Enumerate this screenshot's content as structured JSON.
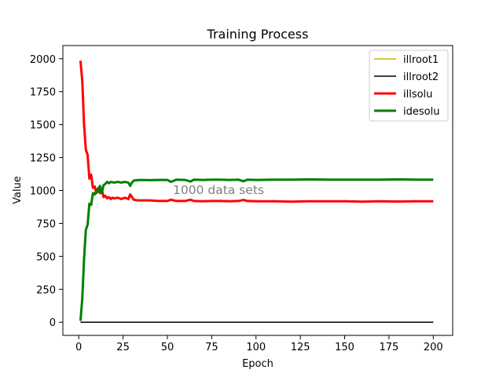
{
  "chart_data": {
    "type": "line",
    "title": "Training Process",
    "xlabel": "Epoch",
    "ylabel": "Value",
    "xlim": [
      -8.95,
      210.95
    ],
    "ylim": [
      -100,
      2100
    ],
    "xticks": [
      0,
      25,
      50,
      75,
      100,
      125,
      150,
      175,
      200
    ],
    "yticks": [
      0,
      250,
      500,
      750,
      1000,
      1250,
      1500,
      1750,
      2000
    ],
    "grid": false,
    "legend_position": "top-right",
    "annotation": {
      "text": "1000 data sets",
      "x": 78,
      "y": 990
    },
    "series": [
      {
        "name": "illroot1",
        "color": "#c8b400",
        "line_width": 1.5,
        "x": [
          1,
          200
        ],
        "y": [
          0,
          0
        ]
      },
      {
        "name": "illroot2",
        "color": "#000000",
        "line_width": 1.5,
        "x": [
          1,
          200
        ],
        "y": [
          0,
          0
        ]
      },
      {
        "name": "illsolu",
        "color": "#ff0000",
        "line_width": 3,
        "x": [
          1,
          2,
          3,
          4,
          5,
          6,
          7,
          8,
          9,
          10,
          11,
          12,
          13,
          14,
          15,
          16,
          17,
          18,
          19,
          20,
          22,
          24,
          26,
          28,
          29,
          30,
          31,
          33,
          35,
          40,
          45,
          50,
          52,
          55,
          60,
          63,
          65,
          70,
          75,
          80,
          85,
          90,
          93,
          95,
          100,
          110,
          120,
          130,
          140,
          150,
          160,
          170,
          180,
          190,
          200
        ],
        "y": [
          1985,
          1830,
          1500,
          1310,
          1270,
          1090,
          1120,
          1020,
          1030,
          980,
          1020,
          980,
          1010,
          950,
          960,
          940,
          950,
          935,
          945,
          940,
          945,
          935,
          945,
          935,
          970,
          950,
          930,
          925,
          925,
          925,
          920,
          920,
          930,
          920,
          920,
          930,
          920,
          918,
          920,
          920,
          918,
          920,
          928,
          920,
          918,
          918,
          915,
          918,
          918,
          918,
          915,
          918,
          916,
          918,
          918
        ]
      },
      {
        "name": "idesolu",
        "color": "#008000",
        "line_width": 3,
        "x": [
          1,
          2,
          3,
          4,
          5,
          6,
          7,
          8,
          9,
          10,
          11,
          12,
          13,
          14,
          15,
          16,
          17,
          18,
          20,
          22,
          24,
          26,
          28,
          29,
          30,
          31,
          33,
          35,
          40,
          45,
          50,
          52,
          55,
          60,
          63,
          65,
          70,
          75,
          80,
          85,
          90,
          93,
          95,
          100,
          110,
          120,
          130,
          140,
          150,
          160,
          170,
          180,
          190,
          200
        ],
        "y": [
          10,
          180,
          480,
          700,
          740,
          900,
          890,
          980,
          970,
          1000,
          990,
          1035,
          980,
          1040,
          1050,
          1065,
          1055,
          1065,
          1060,
          1065,
          1060,
          1065,
          1060,
          1035,
          1060,
          1075,
          1078,
          1080,
          1078,
          1080,
          1080,
          1065,
          1082,
          1080,
          1068,
          1082,
          1080,
          1082,
          1082,
          1080,
          1082,
          1070,
          1082,
          1080,
          1082,
          1082,
          1084,
          1082,
          1082,
          1082,
          1082,
          1084,
          1082,
          1082
        ]
      }
    ]
  }
}
